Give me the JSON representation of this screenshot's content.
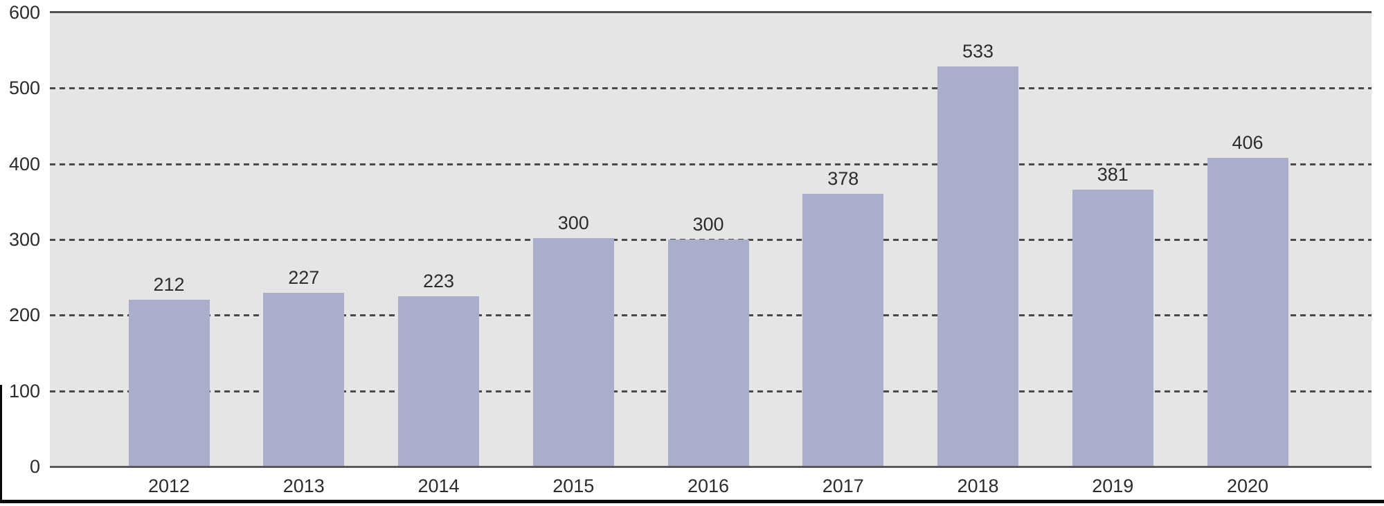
{
  "chart_data": {
    "type": "bar",
    "categories": [
      "2012",
      "2013",
      "2014",
      "2015",
      "2016",
      "2017",
      "2018",
      "2019",
      "2020"
    ],
    "values": [
      212,
      227,
      223,
      300,
      300,
      378,
      533,
      381,
      406
    ],
    "rendered_values": [
      220,
      230,
      225,
      302,
      300,
      360,
      529,
      366,
      408
    ],
    "value_labels": [
      "212",
      "227",
      "223",
      "300",
      "300",
      "378",
      "533",
      "381",
      "406"
    ],
    "title": "",
    "xlabel": "",
    "ylabel": "",
    "ylim": [
      0,
      600
    ],
    "yticks": [
      0,
      100,
      200,
      300,
      400,
      500,
      600
    ],
    "ytick_labels": [
      "0",
      "100",
      "200",
      "300",
      "400",
      "500",
      "600"
    ],
    "grid": "dashed horizontal gridlines every 100 units; solid line at 600 (top border) and 0 (x-axis)",
    "legend_position": "none",
    "colors": {
      "bar_fill": "#abaeca",
      "plot_background": "#e5e5e6",
      "gridline": "#4a4a4a",
      "top_border": "#4e4e50",
      "axis_line": "#59595b",
      "label_text": "#2c2c2e",
      "page_background": "#ffffff",
      "crop_edge_rule": "#0a0a0a"
    }
  }
}
